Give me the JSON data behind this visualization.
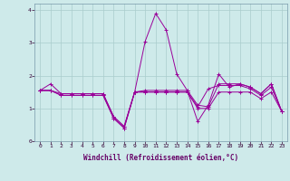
{
  "xlabel": "Windchill (Refroidissement éolien,°C)",
  "ylabel": "",
  "background_color": "#ceeaea",
  "grid_color": "#aacccc",
  "line_color": "#990099",
  "xlim": [
    -0.5,
    23.5
  ],
  "ylim": [
    0,
    4.2
  ],
  "xticks": [
    0,
    1,
    2,
    3,
    4,
    5,
    6,
    7,
    8,
    9,
    10,
    11,
    12,
    13,
    14,
    15,
    16,
    17,
    18,
    19,
    20,
    21,
    22,
    23
  ],
  "yticks": [
    0,
    1,
    2,
    3,
    4
  ],
  "series": [
    [
      1.55,
      1.75,
      1.45,
      1.45,
      1.45,
      1.45,
      1.45,
      0.75,
      0.45,
      1.5,
      3.05,
      3.9,
      3.4,
      2.05,
      1.55,
      0.6,
      1.1,
      2.05,
      1.65,
      1.75,
      1.65,
      1.45,
      1.75,
      0.9
    ],
    [
      1.55,
      1.55,
      1.45,
      1.45,
      1.45,
      1.45,
      1.45,
      0.75,
      0.45,
      1.5,
      1.55,
      1.55,
      1.55,
      1.55,
      1.55,
      1.1,
      1.05,
      1.75,
      1.75,
      1.75,
      1.65,
      1.45,
      1.75,
      0.9
    ],
    [
      1.55,
      1.55,
      1.4,
      1.4,
      1.4,
      1.4,
      1.4,
      0.7,
      0.4,
      1.5,
      1.5,
      1.5,
      1.5,
      1.5,
      1.5,
      1.05,
      1.6,
      1.7,
      1.7,
      1.7,
      1.6,
      1.4,
      1.65,
      0.9
    ],
    [
      1.55,
      1.55,
      1.4,
      1.4,
      1.4,
      1.4,
      1.4,
      0.7,
      0.4,
      1.5,
      1.5,
      1.5,
      1.5,
      1.5,
      1.5,
      1.0,
      1.0,
      1.5,
      1.5,
      1.5,
      1.5,
      1.3,
      1.5,
      0.9
    ]
  ]
}
